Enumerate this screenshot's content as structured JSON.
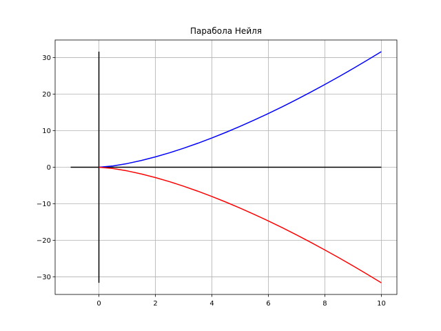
{
  "chart_data": {
    "type": "line",
    "title": "Парабола Нейля",
    "xlabel": "",
    "ylabel": "",
    "xlim": [
      -1.55,
      10.55
    ],
    "ylim": [
      -34.8,
      34.8
    ],
    "grid": true,
    "x_ticks": [
      0,
      2,
      4,
      6,
      8,
      10
    ],
    "y_ticks": [
      -30,
      -20,
      -10,
      0,
      10,
      20,
      30
    ],
    "x_tick_labels": [
      "0",
      "2",
      "4",
      "6",
      "8",
      "10"
    ],
    "y_tick_labels": [
      "−30",
      "−20",
      "−10",
      "0",
      "10",
      "20",
      "30"
    ],
    "series": [
      {
        "color": "#0000ff",
        "x": [
          0,
          0.5,
          1,
          1.5,
          2,
          2.5,
          3,
          3.5,
          4,
          4.5,
          5,
          5.5,
          6,
          6.5,
          7,
          7.5,
          8,
          8.5,
          9,
          9.5,
          10
        ],
        "y": [
          0,
          0.35,
          1.0,
          1.84,
          2.83,
          3.95,
          5.2,
          6.55,
          8.0,
          9.55,
          11.18,
          12.9,
          14.7,
          16.57,
          18.52,
          20.54,
          22.63,
          24.78,
          27.0,
          29.28,
          31.62
        ]
      },
      {
        "color": "#ff0000",
        "x": [
          0,
          0.5,
          1,
          1.5,
          2,
          2.5,
          3,
          3.5,
          4,
          4.5,
          5,
          5.5,
          6,
          6.5,
          7,
          7.5,
          8,
          8.5,
          9,
          9.5,
          10
        ],
        "y": [
          0,
          -0.35,
          -1.0,
          -1.84,
          -2.83,
          -3.95,
          -5.2,
          -6.55,
          -8.0,
          -9.55,
          -11.18,
          -12.9,
          -14.7,
          -16.57,
          -18.52,
          -20.54,
          -22.63,
          -24.78,
          -27.0,
          -29.28,
          -31.62
        ]
      }
    ],
    "reference_lines": [
      {
        "color": "#000000",
        "x": [
          -1,
          10
        ],
        "y": [
          0,
          0
        ]
      },
      {
        "color": "#000000",
        "x": [
          0,
          0
        ],
        "y": [
          -31.62,
          31.62
        ]
      }
    ]
  }
}
